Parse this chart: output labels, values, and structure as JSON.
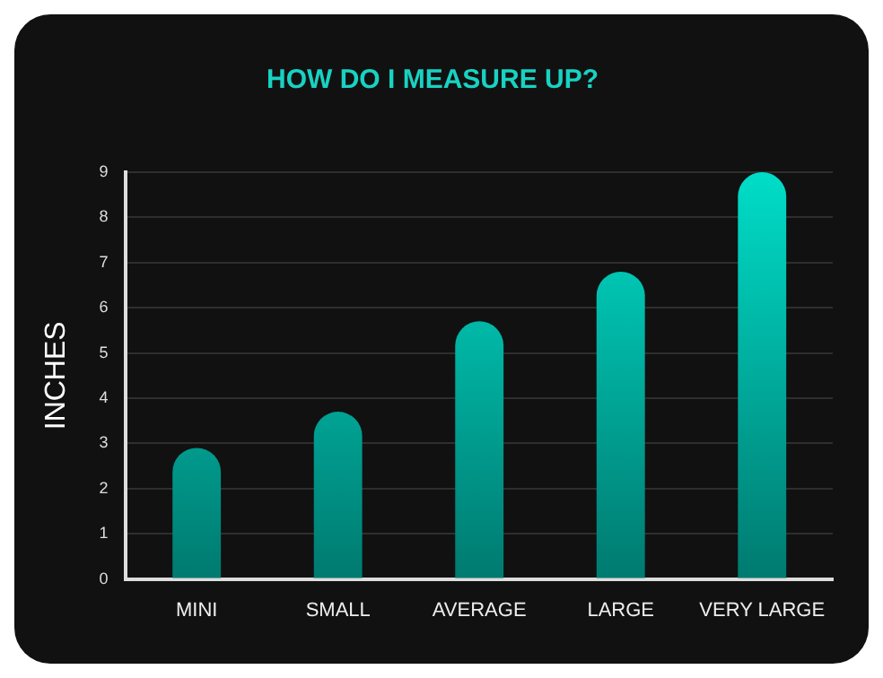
{
  "chart_data": {
    "type": "bar",
    "title": "HOW DO I MEASURE UP?",
    "ylabel": "INCHES",
    "categories": [
      "MINI",
      "SMALL",
      "AVERAGE",
      "LARGE",
      "VERY LARGE"
    ],
    "values": [
      2.9,
      3.7,
      5.7,
      6.8,
      9.0
    ],
    "color": "#00ddc8",
    "ylim": [
      0,
      9
    ],
    "yticks": [
      0,
      1,
      2,
      3,
      4,
      5,
      6,
      7,
      8,
      9
    ],
    "grid": "y",
    "legend": false
  }
}
